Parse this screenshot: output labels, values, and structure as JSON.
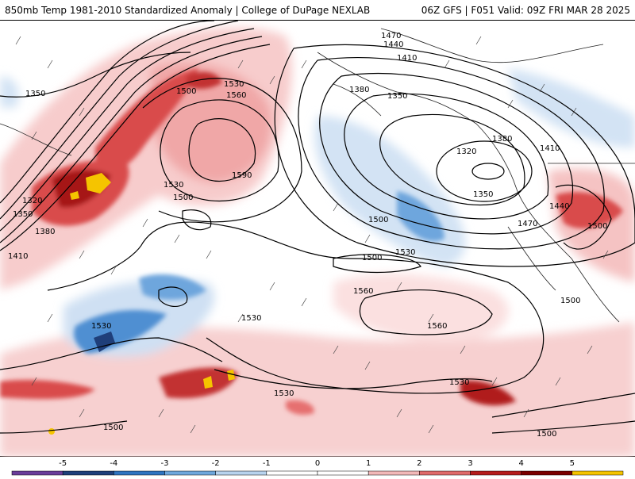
{
  "header": {
    "left": "850mb Temp 1981-2010 Standardized Anomaly | College of DuPage NEXLAB",
    "right": "06Z GFS | F051 Valid: 09Z FRI MAR 28 2025"
  },
  "map": {
    "contour_labels": [
      {
        "text": "1470"
      },
      {
        "text": "1440"
      },
      {
        "text": "1410"
      },
      {
        "text": "1380"
      },
      {
        "text": "1350"
      },
      {
        "text": "1350"
      },
      {
        "text": "1320"
      },
      {
        "text": "1380"
      },
      {
        "text": "1410"
      },
      {
        "text": "1440"
      },
      {
        "text": "1470"
      },
      {
        "text": "1350"
      },
      {
        "text": "1530"
      },
      {
        "text": "1560"
      },
      {
        "text": "1500"
      },
      {
        "text": "1590"
      },
      {
        "text": "1530"
      },
      {
        "text": "1500"
      },
      {
        "text": "1320"
      },
      {
        "text": "1350"
      },
      {
        "text": "1380"
      },
      {
        "text": "1410"
      },
      {
        "text": "1500"
      },
      {
        "text": "1500"
      },
      {
        "text": "1530"
      },
      {
        "text": "1560"
      },
      {
        "text": "1560"
      },
      {
        "text": "1530"
      },
      {
        "text": "1530"
      },
      {
        "text": "1530"
      },
      {
        "text": "1530"
      },
      {
        "text": "1500"
      },
      {
        "text": "1500"
      },
      {
        "text": "1500"
      },
      {
        "text": "1500"
      }
    ]
  },
  "legend": {
    "ticks": [
      "-5",
      "-4",
      "-3",
      "-2",
      "-1",
      "0",
      "1",
      "2",
      "3",
      "4",
      "5"
    ],
    "colors": [
      "#6a3d9a",
      "#1f3f7a",
      "#2f74c0",
      "#6fa7dc",
      "#b8d3ee",
      "#ffffff",
      "#ffffff",
      "#f2b8b8",
      "#e06a6a",
      "#b51d1d",
      "#7a0000",
      "#f5c400"
    ]
  }
}
